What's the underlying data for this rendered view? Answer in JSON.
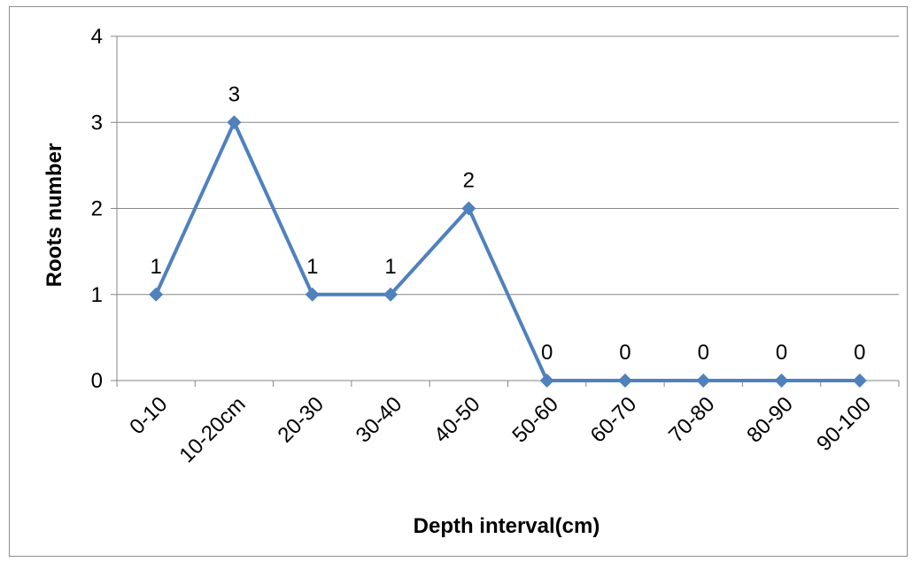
{
  "chart_data": {
    "type": "line",
    "title": "",
    "xlabel": "Depth interval(cm)",
    "ylabel": "Roots number",
    "categories": [
      "0-10",
      "10-20cm",
      "20-30",
      "30-40",
      "40-50",
      "50-60",
      "60-70",
      "70-80",
      "80-90",
      "90-100"
    ],
    "series": [
      {
        "values": [
          1,
          3,
          1,
          1,
          2,
          0,
          0,
          0,
          0,
          0
        ]
      }
    ],
    "data_labels": [
      "1",
      "3",
      "1",
      "1",
      "2",
      "0",
      "0",
      "0",
      "0",
      "0"
    ],
    "ylim": [
      0,
      4
    ],
    "yticks": [
      "0",
      "1",
      "2",
      "3",
      "4"
    ],
    "grid": "horizontal",
    "legend": "none",
    "colors": {
      "series": "#4f81bd",
      "grid": "#868686",
      "axis": "#868686"
    }
  }
}
